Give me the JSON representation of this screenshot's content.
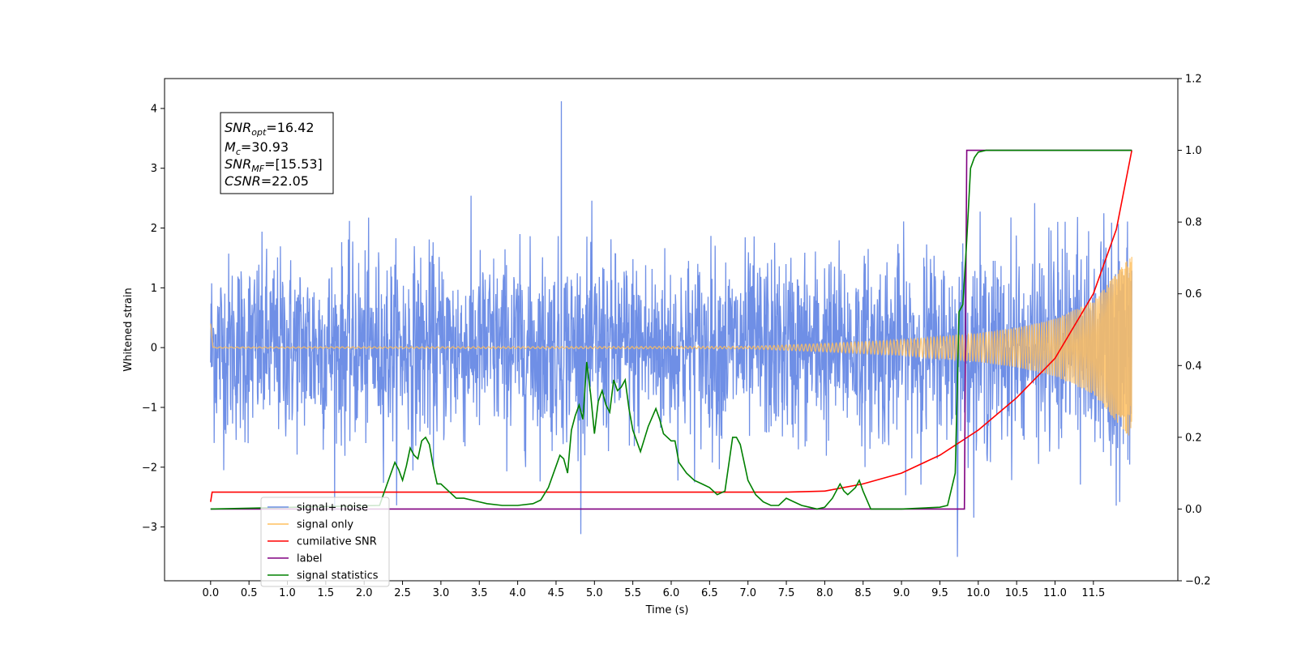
{
  "chart_data": {
    "type": "line",
    "title": "",
    "xlabel": "Time (s)",
    "ylabel": "Whitened strain",
    "xlim": [
      -0.6,
      12.6
    ],
    "ylim": [
      -3.9,
      4.5
    ],
    "y2lim": [
      -0.2,
      1.2
    ],
    "xticks": [
      "0.0",
      "0.5",
      "1.0",
      "1.5",
      "2.0",
      "2.5",
      "3.0",
      "3.5",
      "4.0",
      "4.5",
      "5.0",
      "5.5",
      "6.0",
      "6.5",
      "7.0",
      "7.5",
      "8.0",
      "8.5",
      "9.0",
      "9.5",
      "10.0",
      "10.5",
      "11.0",
      "11.5"
    ],
    "yticks": [
      -3,
      -2,
      -1,
      0,
      1,
      2,
      3,
      4
    ],
    "yticks_labels": [
      "−3",
      "−2",
      "−1",
      "0",
      "1",
      "2",
      "3",
      "4"
    ],
    "y2ticks": [
      "−0.2",
      "0.0",
      "0.2",
      "0.4",
      "0.6",
      "0.8",
      "1.0",
      "1.2"
    ],
    "legend_placement": "lower-left",
    "series": [
      {
        "name": "signal+ noise",
        "axis": "left",
        "color": "#6f8fe6",
        "description_values": {
          "x_start": 0.0,
          "x_end": 12.0,
          "typical_range": [
            -2.0,
            2.0
          ],
          "peak_max": 4.12,
          "peak_max_x": 4.57,
          "peak_min": -3.5,
          "peak_min_x": 9.73
        }
      },
      {
        "name": "signal only",
        "axis": "left",
        "color": "#ffbf5f",
        "envelope": {
          "x": [
            0.0,
            7.0,
            8.0,
            9.0,
            10.0,
            10.5,
            11.0,
            11.5,
            12.0
          ],
          "amp": [
            0.01,
            0.02,
            0.07,
            0.13,
            0.24,
            0.33,
            0.48,
            0.78,
            1.55
          ]
        }
      },
      {
        "name": "cumilative SNR",
        "axis": "right",
        "color": "#ff0000",
        "x": [
          0.0,
          0.02,
          7.5,
          8.0,
          8.5,
          9.0,
          9.5,
          10.0,
          10.5,
          11.0,
          11.5,
          11.8,
          12.0
        ],
        "y": [
          0.02,
          0.047,
          0.047,
          0.05,
          0.07,
          0.1,
          0.15,
          0.22,
          0.31,
          0.42,
          0.6,
          0.78,
          1.0
        ]
      },
      {
        "name": "label",
        "axis": "right",
        "color": "#800080",
        "x": [
          0.0,
          9.82,
          9.85,
          12.0
        ],
        "y": [
          0.0,
          0.0,
          1.0,
          1.0
        ]
      },
      {
        "name": "signal statistics",
        "axis": "right",
        "color": "#008000",
        "x": [
          0.0,
          2.2,
          2.3,
          2.4,
          2.45,
          2.5,
          2.55,
          2.6,
          2.65,
          2.7,
          2.75,
          2.8,
          2.85,
          2.9,
          2.95,
          3.0,
          3.1,
          3.2,
          3.3,
          3.4,
          3.5,
          3.6,
          3.8,
          4.0,
          4.2,
          4.3,
          4.4,
          4.5,
          4.55,
          4.6,
          4.65,
          4.7,
          4.75,
          4.8,
          4.85,
          4.9,
          4.95,
          5.0,
          5.05,
          5.1,
          5.15,
          5.2,
          5.25,
          5.3,
          5.35,
          5.4,
          5.45,
          5.5,
          5.55,
          5.6,
          5.7,
          5.8,
          5.85,
          5.9,
          6.0,
          6.05,
          6.1,
          6.2,
          6.3,
          6.4,
          6.5,
          6.6,
          6.7,
          6.8,
          6.85,
          6.9,
          6.95,
          7.0,
          7.1,
          7.2,
          7.3,
          7.4,
          7.5,
          7.6,
          7.7,
          7.8,
          7.9,
          8.0,
          8.1,
          8.2,
          8.25,
          8.3,
          8.4,
          8.45,
          8.5,
          8.6,
          8.7,
          9.0,
          9.5,
          9.6,
          9.7,
          9.75,
          9.8,
          9.85,
          9.9,
          9.95,
          10.0,
          10.1,
          10.5,
          11.0,
          11.5,
          12.0
        ],
        "y": [
          0.0,
          0.01,
          0.07,
          0.13,
          0.11,
          0.08,
          0.12,
          0.17,
          0.15,
          0.14,
          0.19,
          0.2,
          0.18,
          0.12,
          0.07,
          0.07,
          0.05,
          0.03,
          0.03,
          0.025,
          0.02,
          0.015,
          0.01,
          0.01,
          0.015,
          0.025,
          0.06,
          0.12,
          0.15,
          0.14,
          0.1,
          0.22,
          0.26,
          0.29,
          0.25,
          0.41,
          0.32,
          0.21,
          0.3,
          0.33,
          0.29,
          0.27,
          0.36,
          0.33,
          0.34,
          0.36,
          0.28,
          0.22,
          0.19,
          0.16,
          0.23,
          0.28,
          0.25,
          0.21,
          0.19,
          0.19,
          0.13,
          0.1,
          0.08,
          0.07,
          0.06,
          0.04,
          0.05,
          0.2,
          0.2,
          0.18,
          0.13,
          0.08,
          0.04,
          0.02,
          0.01,
          0.01,
          0.03,
          0.02,
          0.01,
          0.005,
          0.0,
          0.005,
          0.03,
          0.07,
          0.05,
          0.04,
          0.06,
          0.08,
          0.05,
          0.0,
          0.0,
          0.0,
          0.005,
          0.01,
          0.1,
          0.55,
          0.57,
          0.75,
          0.95,
          0.98,
          0.995,
          1.0,
          1.0,
          1.0,
          1.0,
          1.0
        ]
      }
    ]
  },
  "legend": {
    "items": [
      {
        "label": "signal+ noise",
        "color": "#6f8fe6"
      },
      {
        "label": "signal only",
        "color": "#ffbf5f"
      },
      {
        "label": "cumilative SNR",
        "color": "#ff0000"
      },
      {
        "label": "label",
        "color": "#800080"
      },
      {
        "label": "signal statistics",
        "color": "#008000"
      }
    ]
  },
  "info_box": {
    "snr_opt_main": "SNR",
    "snr_opt_sub": "opt",
    "snr_opt_value": "=16.42",
    "mc_main": "M",
    "mc_sub": "c",
    "mc_value": "=30.93",
    "snr_mf_main": "SNR",
    "snr_mf_sub": "MF",
    "snr_mf_value": "=[15.53]",
    "csnr_main": "CSNR",
    "csnr_value": "=22.05"
  }
}
